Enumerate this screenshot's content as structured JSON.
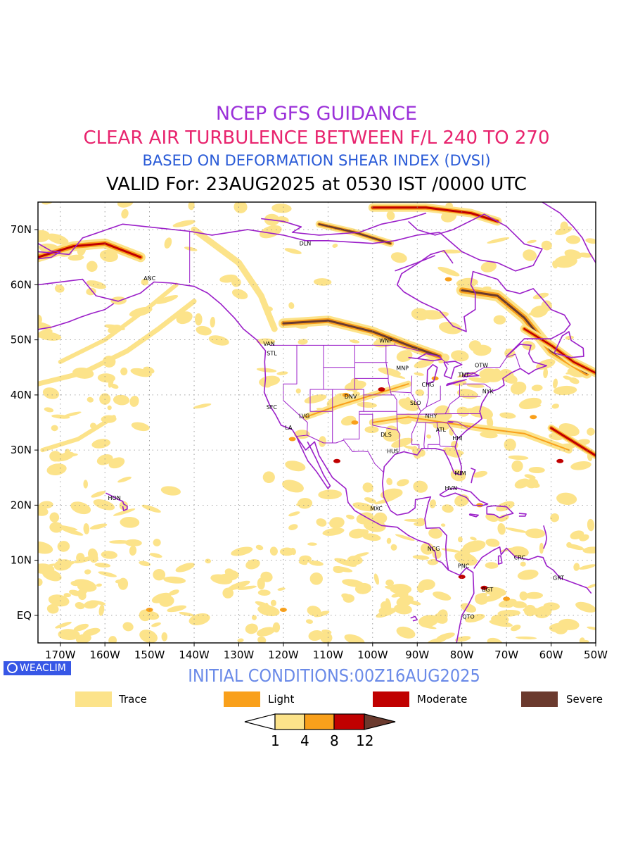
{
  "titles": {
    "line1": "NCEP GFS GUIDANCE",
    "line2": "CLEAR AIR TURBULENCE BETWEEN F/L 240 TO 270",
    "line3": "BASED ON DEFORMATION SHEAR INDEX (DVSI)",
    "line4": "VALID For: 23AUG2025 at 0530 IST /0000 UTC"
  },
  "map": {
    "lon_range": [
      -175,
      -50
    ],
    "lat_range": [
      -5,
      75
    ],
    "lon_ticks": [
      "170W",
      "160W",
      "150W",
      "140W",
      "130W",
      "120W",
      "110W",
      "100W",
      "90W",
      "80W",
      "70W",
      "60W",
      "50W"
    ],
    "lat_ticks": [
      "70N",
      "60N",
      "50N",
      "40N",
      "30N",
      "20N",
      "10N",
      "EQ"
    ],
    "cities": [
      {
        "label": "ANC",
        "lon": -149.9,
        "lat": 61.2
      },
      {
        "label": "DLN",
        "lon": -115,
        "lat": 67.5
      },
      {
        "label": "VAN",
        "lon": -123.1,
        "lat": 49.3
      },
      {
        "label": "STL",
        "lon": -122.3,
        "lat": 47.6
      },
      {
        "label": "WNP",
        "lon": -97.1,
        "lat": 49.9
      },
      {
        "label": "MNP",
        "lon": -93.3,
        "lat": 44.9
      },
      {
        "label": "OTW",
        "lon": -75.7,
        "lat": 45.4
      },
      {
        "label": "TNT",
        "lon": -79.4,
        "lat": 43.7
      },
      {
        "label": "CHG",
        "lon": -87.6,
        "lat": 41.9
      },
      {
        "label": "NYK",
        "lon": -74.0,
        "lat": 40.7
      },
      {
        "label": "DNV",
        "lon": -104.9,
        "lat": 39.7
      },
      {
        "label": "SFC",
        "lon": -122.4,
        "lat": 37.8
      },
      {
        "label": "SLO",
        "lon": -90.2,
        "lat": 38.6
      },
      {
        "label": "LVG",
        "lon": -115.1,
        "lat": 36.2
      },
      {
        "label": "NHY",
        "lon": -86.8,
        "lat": 36.2
      },
      {
        "label": "LA",
        "lon": -118.2,
        "lat": 34.1
      },
      {
        "label": "ATL",
        "lon": -84.4,
        "lat": 33.7
      },
      {
        "label": "DLS",
        "lon": -96.8,
        "lat": 32.8
      },
      {
        "label": "HHI",
        "lon": -80.7,
        "lat": 32.2
      },
      {
        "label": "HUS",
        "lon": -95.4,
        "lat": 29.8
      },
      {
        "label": "MIM",
        "lon": -80.2,
        "lat": 25.8
      },
      {
        "label": "HVN",
        "lon": -82.4,
        "lat": 23.1
      },
      {
        "label": "HON",
        "lon": -157.9,
        "lat": 21.3
      },
      {
        "label": "MXC",
        "lon": -99.1,
        "lat": 19.4
      },
      {
        "label": "NCG",
        "lon": -86.3,
        "lat": 12.1
      },
      {
        "label": "CRC",
        "lon": -66.9,
        "lat": 10.5
      },
      {
        "label": "PNC",
        "lon": -79.5,
        "lat": 9.0
      },
      {
        "label": "GRT",
        "lon": -58.2,
        "lat": 6.8
      },
      {
        "label": "BGT",
        "lon": -74.1,
        "lat": 4.7
      },
      {
        "label": "QTO",
        "lon": -78.5,
        "lat": -0.2
      }
    ],
    "turbulence_colors": {
      "trace": "#fce38a",
      "light": "#f9a01b",
      "moderate": "#c00000",
      "severe": "#6b3a2e"
    },
    "land_outline_color": "#9b1fc9"
  },
  "footer": {
    "badge": "WEACLIM",
    "initial_conditions": "INITIAL CONDITIONS:00Z16AUG2025"
  },
  "legend": {
    "items": [
      {
        "label": "Trace",
        "color": "#fce38a"
      },
      {
        "label": "Light",
        "color": "#f9a01b"
      },
      {
        "label": "Moderate",
        "color": "#c00000"
      },
      {
        "label": "Severe",
        "color": "#6b3a2e"
      }
    ],
    "colorbar_ticks": [
      "1",
      "4",
      "8",
      "12"
    ]
  }
}
